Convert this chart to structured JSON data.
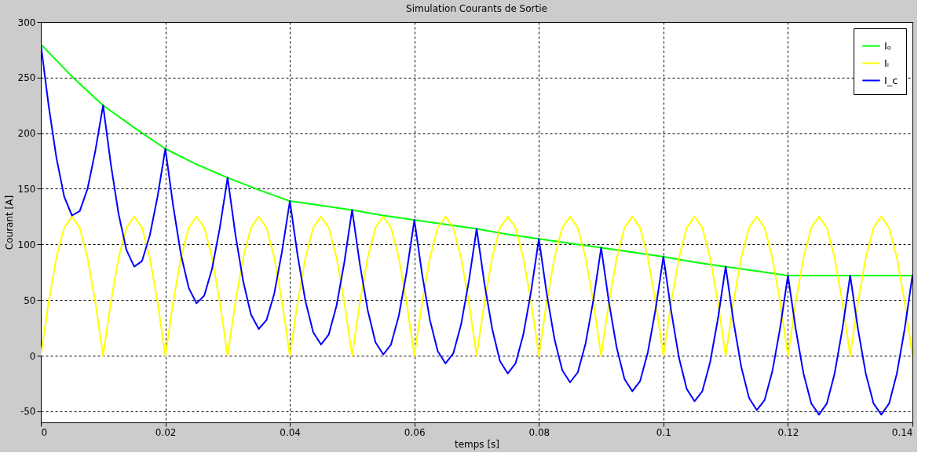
{
  "chart_data": {
    "type": "line",
    "title": "Simulation Courants de Sortie",
    "xlabel": "temps [s]",
    "ylabel": "Courant [A]",
    "xlim": [
      0,
      0.14
    ],
    "xticks": [
      0,
      0.02,
      0.04,
      0.06,
      0.08,
      0.1,
      0.12,
      0.14
    ],
    "ylim": [
      -60,
      300
    ],
    "yticks": [
      -50,
      0,
      50,
      100,
      150,
      200,
      250,
      300
    ],
    "grid": true,
    "legend": "top right",
    "x": [
      0,
      0.00125,
      0.0025,
      0.00375,
      0.005,
      0.00625,
      0.0075,
      0.00875,
      0.01,
      0.01125,
      0.0125,
      0.01375,
      0.015,
      0.01625,
      0.0175,
      0.01875,
      0.02,
      0.02125,
      0.0225,
      0.02375,
      0.025,
      0.02625,
      0.0275,
      0.02875,
      0.03,
      0.03125,
      0.0325,
      0.03375,
      0.035,
      0.03625,
      0.0375,
      0.03875,
      0.04,
      0.04125,
      0.0425,
      0.04375,
      0.045,
      0.04625,
      0.0475,
      0.04875,
      0.05,
      0.05125,
      0.0525,
      0.05375,
      0.055,
      0.05625,
      0.0575,
      0.05875,
      0.06,
      0.06125,
      0.0625,
      0.06375,
      0.065,
      0.06625,
      0.0675,
      0.06875,
      0.07,
      0.07125,
      0.0725,
      0.07375,
      0.075,
      0.07625,
      0.0775,
      0.07875,
      0.08,
      0.08125,
      0.0825,
      0.08375,
      0.085,
      0.08625,
      0.0875,
      0.08875,
      0.09,
      0.09125,
      0.0925,
      0.09375,
      0.095,
      0.09625,
      0.0975,
      0.09875,
      0.1,
      0.10125,
      0.1025,
      0.10375,
      0.105,
      0.10625,
      0.1075,
      0.10875,
      0.11,
      0.11125,
      0.1125,
      0.11375,
      0.115,
      0.11625,
      0.1175,
      0.11875,
      0.12,
      0.12125,
      0.1225,
      0.12375,
      0.125,
      0.12625,
      0.1275,
      0.12875,
      0.13,
      0.13125,
      0.1325,
      0.13375,
      0.135,
      0.13625,
      0.1375,
      0.13875,
      0.14
    ],
    "series": [
      {
        "name": "Iₒ",
        "color": "#00ff00",
        "x": [
          0,
          0.005,
          0.01,
          0.015,
          0.02,
          0.025,
          0.03,
          0.035,
          0.04,
          0.045,
          0.05,
          0.055,
          0.06,
          0.065,
          0.07,
          0.075,
          0.08,
          0.085,
          0.09,
          0.095,
          0.1,
          0.105,
          0.11,
          0.115,
          0.12,
          0.125,
          0.13,
          0.135,
          0.14
        ],
        "values": [
          280,
          251,
          225,
          205,
          186,
          172,
          160,
          149,
          139,
          135,
          131,
          126,
          122,
          118,
          114,
          109,
          105,
          101,
          97,
          93,
          89,
          84,
          80,
          76,
          72,
          72,
          72,
          72,
          72
        ]
      },
      {
        "name": "Iᵢ",
        "color": "#ffff00",
        "values": [
          0,
          48,
          88,
          115,
          125,
          115,
          88,
          48,
          0,
          48,
          88,
          115,
          125,
          115,
          88,
          48,
          0,
          48,
          88,
          115,
          125,
          115,
          88,
          48,
          0,
          48,
          88,
          115,
          125,
          115,
          88,
          48,
          0,
          48,
          88,
          115,
          125,
          115,
          88,
          48,
          0,
          48,
          88,
          115,
          125,
          115,
          88,
          48,
          0,
          48,
          88,
          115,
          125,
          115,
          88,
          48,
          0,
          48,
          88,
          115,
          125,
          115,
          88,
          48,
          0,
          48,
          88,
          115,
          125,
          115,
          88,
          48,
          0,
          48,
          88,
          115,
          125,
          115,
          88,
          48,
          0,
          48,
          88,
          115,
          125,
          115,
          88,
          48,
          0,
          48,
          88,
          115,
          125,
          115,
          88,
          48,
          0,
          48,
          88,
          115,
          125,
          115,
          88,
          48,
          0,
          48,
          88,
          115,
          125,
          115,
          88,
          48,
          0
        ]
      },
      {
        "name": "I_c",
        "color": "#0000ff",
        "values": [
          280,
          225,
          178,
          143,
          126,
          130,
          150,
          184,
          225,
          172,
          127,
          95,
          80,
          85,
          108,
          143,
          186,
          135,
          91,
          61,
          47,
          54,
          78,
          115,
          160,
          109,
          67,
          37,
          24,
          32,
          56,
          94,
          139,
          90,
          49,
          21,
          10,
          19,
          45,
          84,
          131,
          82,
          41,
          12,
          1,
          10,
          36,
          75,
          122,
          73,
          32,
          4,
          -7,
          2,
          28,
          67,
          114,
          65,
          24,
          -5,
          -16,
          -7,
          19,
          58,
          105,
          56,
          15,
          -13,
          -24,
          -15,
          11,
          50,
          97,
          48,
          7,
          -21,
          -32,
          -23,
          3,
          42,
          89,
          40,
          -2,
          -30,
          -41,
          -32,
          -6,
          33,
          80,
          31,
          -10,
          -38,
          -49,
          -40,
          -14,
          25,
          72,
          24,
          -16,
          -43,
          -53,
          -43,
          -16,
          24,
          72,
          24,
          -16,
          -43,
          -53,
          -43,
          -16,
          24,
          72
        ]
      }
    ]
  }
}
